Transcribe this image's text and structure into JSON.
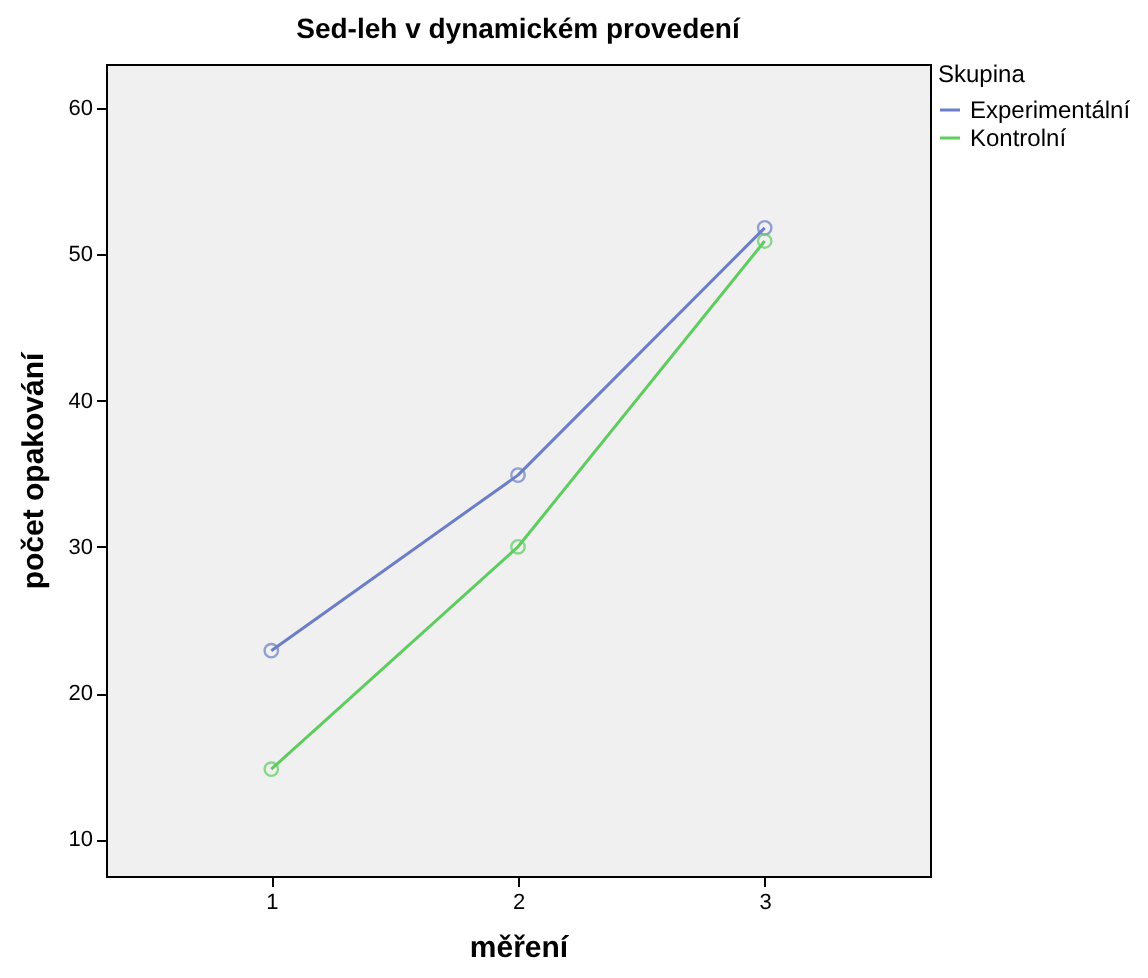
{
  "chart_data": {
    "type": "line",
    "title": "Sed-leh v dynamickém provedení",
    "xlabel": "měření",
    "ylabel": "počet opakování",
    "legend_title": "Skupina",
    "x": [
      1,
      2,
      3
    ],
    "xlim": [
      0.33,
      3.67
    ],
    "xticks": [
      1,
      2,
      3
    ],
    "ylim": [
      7.5,
      63
    ],
    "yticks": [
      10,
      20,
      30,
      40,
      50,
      60
    ],
    "series": [
      {
        "name": "Experimentální",
        "color": "#6b7ec6",
        "values": [
          22.9,
          34.9,
          51.8
        ]
      },
      {
        "name": "Kontrolní",
        "color": "#5fcc60",
        "values": [
          14.8,
          30.0,
          50.9
        ]
      }
    ],
    "marker": "circle",
    "line_style": "solid",
    "grid": false,
    "legend": "top right"
  }
}
